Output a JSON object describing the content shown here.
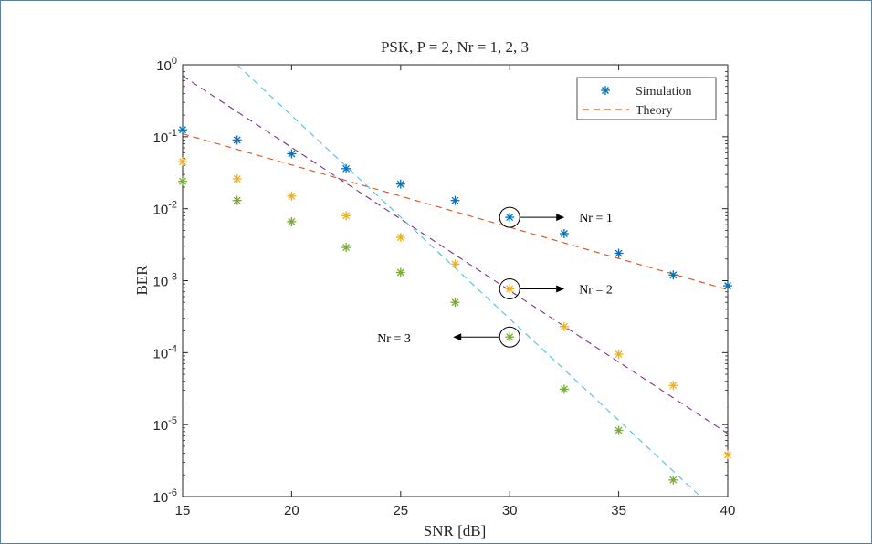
{
  "chart_data": {
    "type": "scatter",
    "title": "PSK, P = 2, Nr = 1, 2, 3",
    "xlabel": "SNR [dB]",
    "ylabel": "BER",
    "xlim": [
      15,
      40
    ],
    "ylim": [
      1e-06,
      1
    ],
    "yscale": "log",
    "xticks": [
      "15",
      "20",
      "25",
      "30",
      "35",
      "40"
    ],
    "yticks": [
      {
        "base": "10",
        "exp": "0"
      },
      {
        "base": "10",
        "exp": "-1"
      },
      {
        "base": "10",
        "exp": "-2"
      },
      {
        "base": "10",
        "exp": "-3"
      },
      {
        "base": "10",
        "exp": "-4"
      },
      {
        "base": "10",
        "exp": "-5"
      },
      {
        "base": "10",
        "exp": "-6"
      }
    ],
    "legend": {
      "position": "top-right",
      "entries": [
        "Simulation",
        "Theory"
      ]
    },
    "grid": false,
    "series": [
      {
        "kind": "simulation",
        "color": "#0072BD",
        "x": [
          15,
          17.5,
          20,
          22.5,
          25,
          27.5,
          30,
          32.5,
          35,
          37.5,
          40
        ],
        "y": [
          0.125,
          0.09,
          0.058,
          0.036,
          0.022,
          0.013,
          0.0076,
          0.0045,
          0.0024,
          0.0012,
          0.00085
        ]
      },
      {
        "kind": "simulation",
        "color": "#EDB120",
        "x": [
          15,
          17.5,
          20,
          22.5,
          25,
          27.5,
          30,
          32.5,
          35,
          37.5,
          40
        ],
        "y": [
          0.045,
          0.026,
          0.015,
          0.008,
          0.004,
          0.0017,
          0.00077,
          0.00023,
          9.5e-05,
          3.5e-05,
          3.8e-06
        ]
      },
      {
        "kind": "simulation",
        "color": "#77AC30",
        "x": [
          15,
          17.5,
          20,
          22.5,
          25,
          27.5,
          30,
          32.5,
          35,
          37.5
        ],
        "y": [
          0.024,
          0.013,
          0.0066,
          0.0029,
          0.0013,
          0.0005,
          0.000165,
          3.1e-05,
          8.3e-06,
          1.7e-06
        ]
      },
      {
        "kind": "theory",
        "color": "#D95319",
        "x": [
          15,
          40
        ],
        "y": [
          0.11,
          0.00075
        ]
      },
      {
        "kind": "theory",
        "color": "#7E2F8E",
        "x": [
          15,
          40
        ],
        "y": [
          0.7,
          7.5e-06
        ]
      },
      {
        "kind": "theory",
        "color": "#4DBEEE",
        "x": [
          17.5,
          38.75
        ],
        "y": [
          1,
          1e-06
        ]
      }
    ],
    "annotations": [
      {
        "text": "Nr = 1",
        "circle": [
          30,
          0.0076
        ],
        "direction": "right"
      },
      {
        "text": "Nr = 2",
        "circle": [
          30,
          0.00077
        ],
        "direction": "right"
      },
      {
        "text": "Nr = 3",
        "circle": [
          30,
          0.000165
        ],
        "direction": "left"
      }
    ]
  }
}
